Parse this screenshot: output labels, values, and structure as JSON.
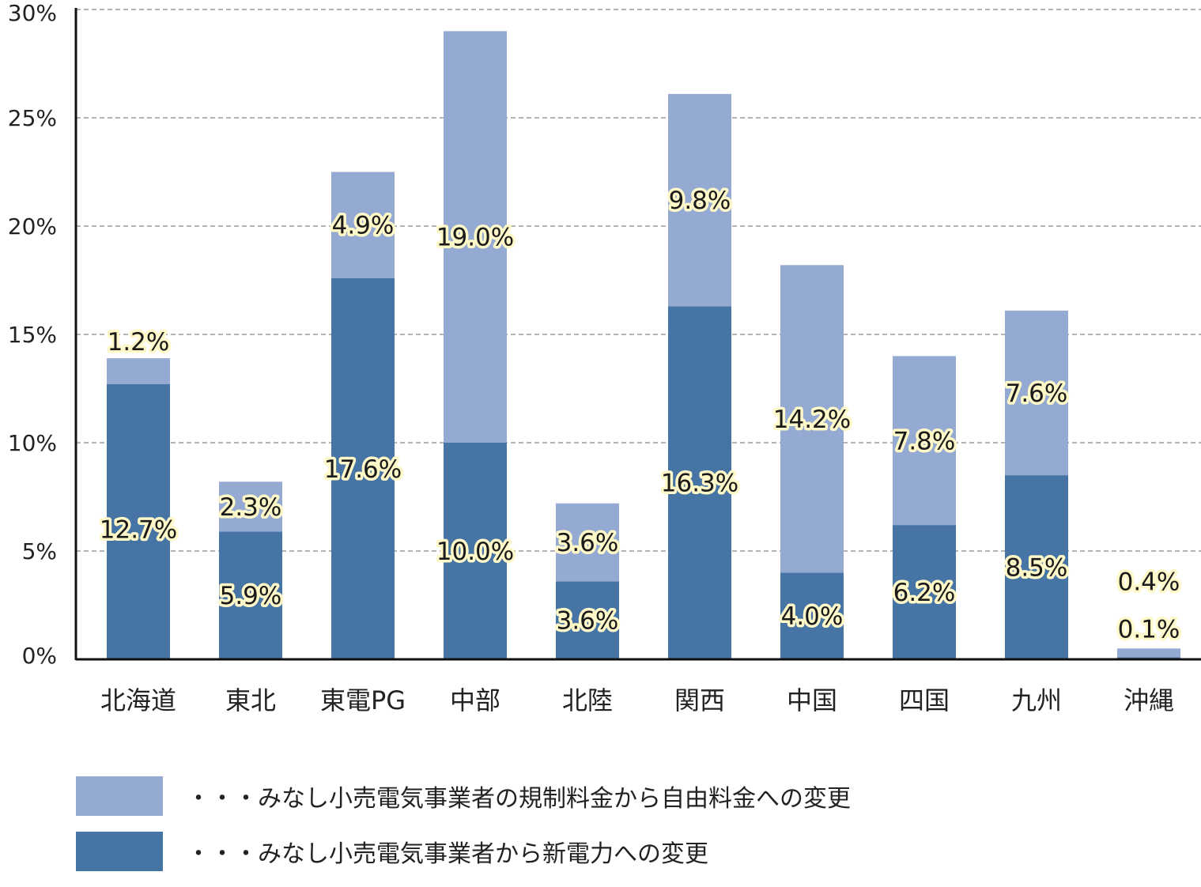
{
  "chart_data": {
    "type": "bar",
    "stacked": true,
    "categories": [
      "北海道",
      "東北",
      "東電PG",
      "中部",
      "北陸",
      "関西",
      "中国",
      "四国",
      "九州",
      "沖縄"
    ],
    "series": [
      {
        "name": "・・・みなし小売電気事業者から新電力への変更",
        "color": "#4674a4",
        "values": [
          12.7,
          5.9,
          17.6,
          10.0,
          3.6,
          16.3,
          4.0,
          6.2,
          8.5,
          0.1
        ],
        "labels": [
          "12.7%",
          "5.9%",
          "17.6%",
          "10.0%",
          "3.6%",
          "16.3%",
          "4.0%",
          "6.2%",
          "8.5%",
          "0.1%"
        ]
      },
      {
        "name": "・・・みなし小売電気事業者の規制料金から自由料金への変更",
        "color": "#95aad3",
        "values": [
          1.2,
          2.3,
          4.9,
          19.0,
          3.6,
          9.8,
          14.2,
          7.8,
          7.6,
          0.4
        ],
        "labels": [
          "1.2%",
          "2.3%",
          "4.9%",
          "19.0%",
          "3.6%",
          "9.8%",
          "14.2%",
          "7.8%",
          "7.6%",
          "0.4%"
        ]
      }
    ],
    "ylim": [
      0,
      30
    ],
    "yticks": [
      0,
      5,
      10,
      15,
      20,
      25,
      30
    ],
    "ytick_labels": [
      "0%",
      "5%",
      "10%",
      "15%",
      "20%",
      "25%",
      "30%"
    ],
    "grid": true,
    "legend_position": "bottom-left"
  },
  "legend": {
    "items": [
      {
        "label": "・・・みなし小売電気事業者の規制料金から自由料金への変更",
        "color": "#95aad3"
      },
      {
        "label": "・・・みなし小売電気事業者から新電力への変更",
        "color": "#4674a4"
      }
    ]
  },
  "colors": {
    "axis": "#111111",
    "grid": "#9a9a9a",
    "label_halo": "#fff8c8"
  }
}
